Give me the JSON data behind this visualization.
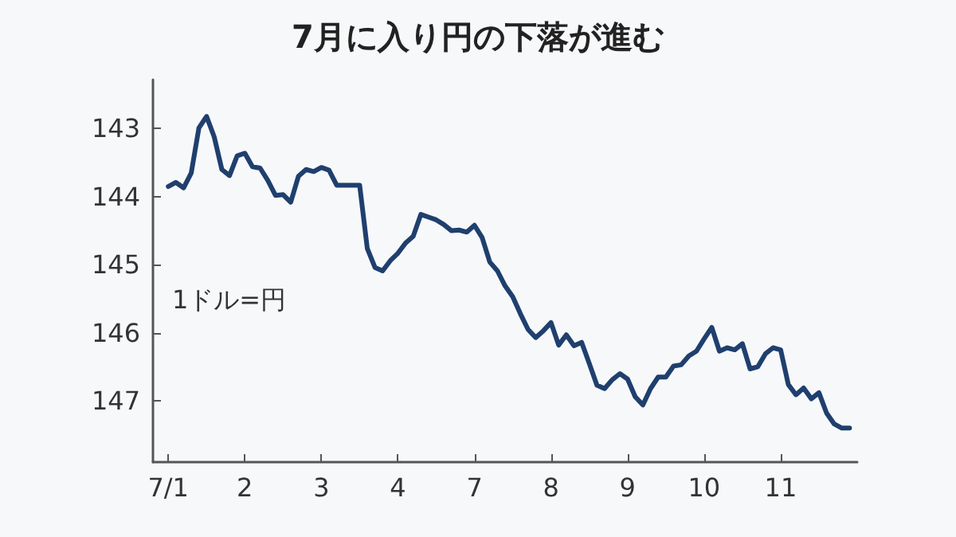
{
  "chart_data": {
    "type": "line",
    "title": "7月に入り円の下落が進む",
    "annotations": [
      "1ドル=円"
    ],
    "categories": [
      null,
      null,
      "7/1",
      null,
      null,
      null,
      null,
      null,
      null,
      null,
      null,
      null,
      "2",
      null,
      null,
      null,
      null,
      null,
      null,
      null,
      null,
      null,
      "3",
      null,
      null,
      null,
      null,
      null,
      null,
      null,
      null,
      null,
      "4",
      null,
      null,
      null,
      null,
      null,
      null,
      null,
      null,
      null,
      "7",
      null,
      null,
      null,
      null,
      null,
      null,
      null,
      null,
      null,
      "8",
      null,
      null,
      null,
      null,
      null,
      null,
      null,
      null,
      null,
      "9",
      null,
      null,
      null,
      null,
      null,
      null,
      null,
      null,
      null,
      "10",
      null,
      null,
      null,
      null,
      null,
      null,
      null,
      null,
      null,
      "11",
      null,
      null,
      null,
      null,
      null,
      null,
      null,
      null,
      null,
      null
    ],
    "series": [
      {
        "color": "#1f3f6e",
        "values": [
          null,
          null,
          143.85,
          143.79,
          143.87,
          143.65,
          142.99,
          142.82,
          143.12,
          143.6,
          143.69,
          143.4,
          143.36,
          143.56,
          143.58,
          143.76,
          143.98,
          143.97,
          144.08,
          143.7,
          143.6,
          143.63,
          143.57,
          143.61,
          143.83,
          143.83,
          143.83,
          143.83,
          144.76,
          145.04,
          145.09,
          144.94,
          144.83,
          144.68,
          144.58,
          144.26,
          144.3,
          144.34,
          144.41,
          144.5,
          144.49,
          144.52,
          144.42,
          144.6,
          144.96,
          145.09,
          145.31,
          145.47,
          145.72,
          145.95,
          146.07,
          145.97,
          145.85,
          146.18,
          146.03,
          146.19,
          146.14,
          146.45,
          146.77,
          146.82,
          146.69,
          146.6,
          146.68,
          146.94,
          147.06,
          146.82,
          146.65,
          146.65,
          146.49,
          146.47,
          146.34,
          146.27,
          146.09,
          145.92,
          146.27,
          146.22,
          146.25,
          146.16,
          146.53,
          146.5,
          146.31,
          146.22,
          146.25,
          146.76,
          146.91,
          146.81,
          146.97,
          146.88,
          147.18,
          147.34,
          147.4,
          147.4,
          null
        ]
      }
    ],
    "ylim": [
      147.9,
      142.28
    ],
    "yticks": [
      143,
      144,
      145,
      146,
      147
    ],
    "grid": false,
    "marker": "none",
    "line_style": "solid"
  }
}
